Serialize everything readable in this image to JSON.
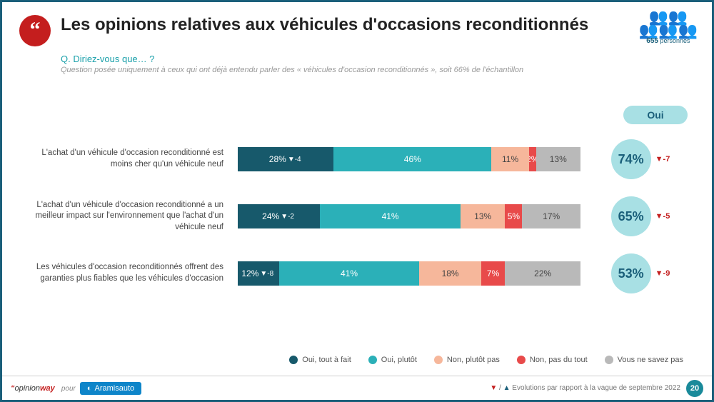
{
  "header": {
    "quote_glyph": "“",
    "title": "Les opinions relatives aux véhicules d'occasions reconditionnés",
    "people_count": "655",
    "people_label": "personnes"
  },
  "subhead": {
    "question": "Q. Diriez-vous que… ?",
    "note": "Question posée uniquement à ceux qui ont déjà entendu parler des « véhicules d'occasion reconditionnés », soit 66% de l'échantillon"
  },
  "oui_header": "Oui",
  "colors": {
    "seg1": "#17596b",
    "seg2": "#2bb0b8",
    "seg3": "#f6b79b",
    "seg4": "#e84a4a",
    "seg5": "#b9b9b9",
    "text_dark": "#444444"
  },
  "rows": [
    {
      "label": "L'achat d'un véhicule d'occasion reconditionné est moins cher qu'un véhicule neuf",
      "segments": [
        {
          "pct": 28,
          "label": "28%",
          "delta": "▼-4"
        },
        {
          "pct": 46,
          "label": "46%"
        },
        {
          "pct": 11,
          "label": "11%"
        },
        {
          "pct": 2,
          "label": "2%"
        },
        {
          "pct": 13,
          "label": "13%"
        }
      ],
      "oui_total": "74%",
      "oui_delta": "▼-7"
    },
    {
      "label": "L'achat d'un véhicule d'occasion reconditionné a un meilleur impact sur l'environnement que l'achat d'un véhicule neuf",
      "segments": [
        {
          "pct": 24,
          "label": "24%",
          "delta": "▼-2"
        },
        {
          "pct": 41,
          "label": "41%"
        },
        {
          "pct": 13,
          "label": "13%"
        },
        {
          "pct": 5,
          "label": "5%"
        },
        {
          "pct": 17,
          "label": "17%"
        }
      ],
      "oui_total": "65%",
      "oui_delta": "▼-5"
    },
    {
      "label": "Les véhicules d'occasion reconditionnés offrent des garanties plus fiables que les véhicules d'occasion",
      "segments": [
        {
          "pct": 12,
          "label": "12%",
          "delta": "▼-8"
        },
        {
          "pct": 41,
          "label": "41%"
        },
        {
          "pct": 18,
          "label": "18%"
        },
        {
          "pct": 7,
          "label": "7%"
        },
        {
          "pct": 22,
          "label": "22%"
        }
      ],
      "oui_total": "53%",
      "oui_delta": "▼-9"
    }
  ],
  "legend": [
    {
      "label": "Oui, tout à fait",
      "color": "#17596b"
    },
    {
      "label": "Oui, plutôt",
      "color": "#2bb0b8"
    },
    {
      "label": "Non, plutôt pas",
      "color": "#f6b79b"
    },
    {
      "label": "Non, pas du tout",
      "color": "#e84a4a"
    },
    {
      "label": "Vous ne savez pas",
      "color": "#b9b9b9"
    }
  ],
  "footer": {
    "brand1_quote": "“",
    "brand1_a": "opinion",
    "brand1_b": "way",
    "pour": "pour",
    "brand2_icon": "◐",
    "brand2": "Aramisauto",
    "evolution_note": "Evolutions par rapport à la vague de septembre 2022",
    "tri_down": "▼",
    "tri_up": "▲",
    "slash": " / ",
    "page": "20"
  }
}
